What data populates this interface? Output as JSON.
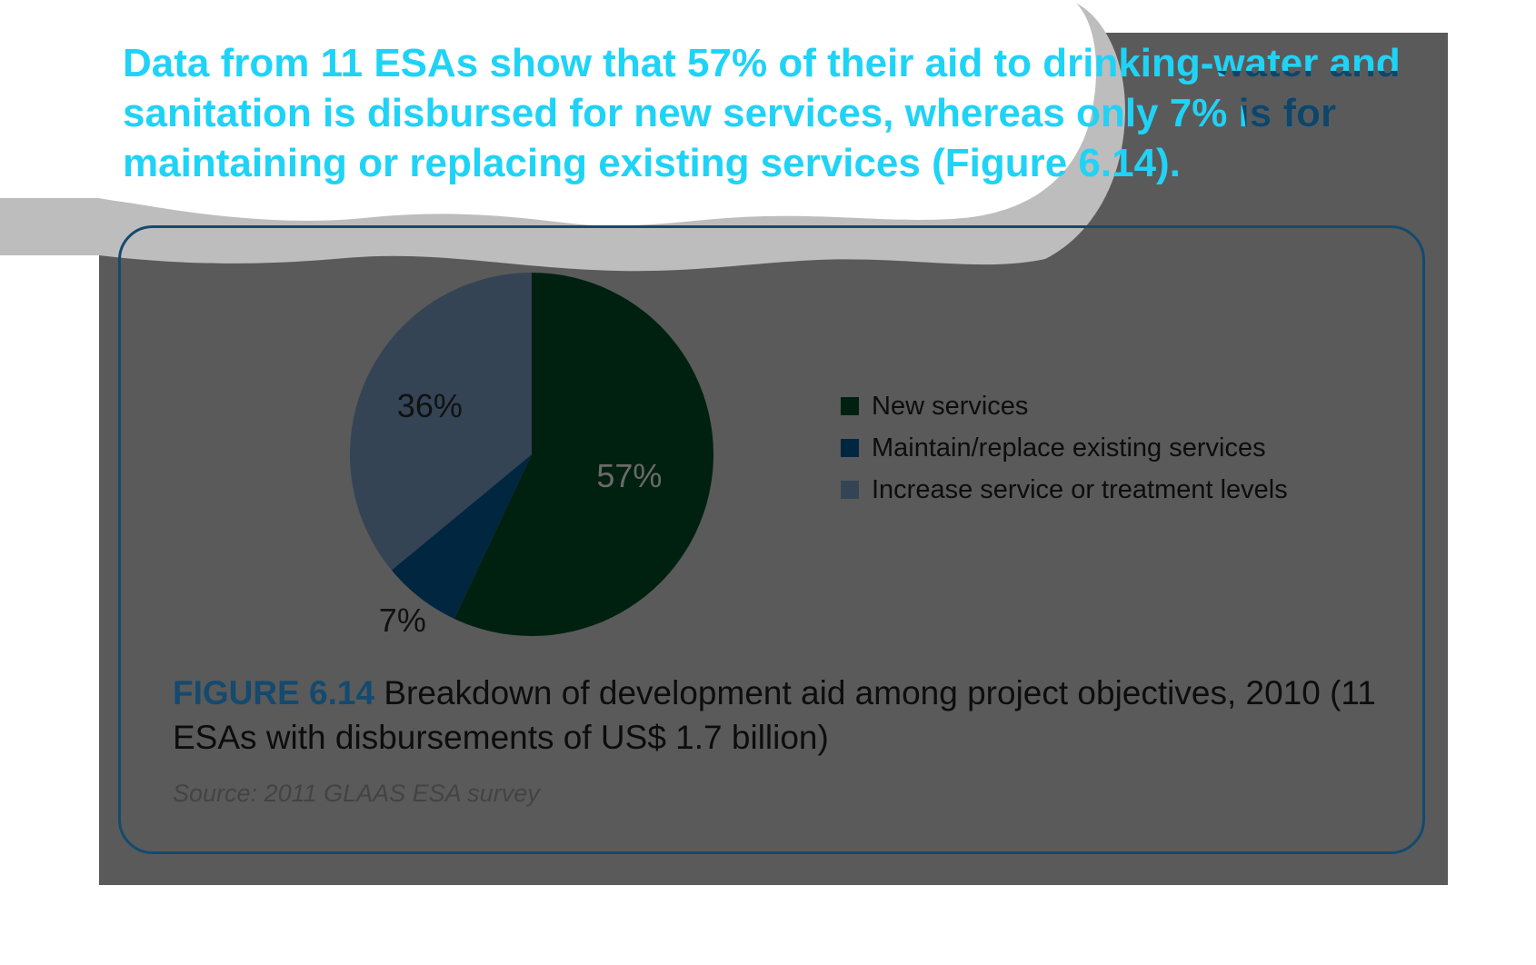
{
  "headline": {
    "text": "Data from 11 ESAs show that 57% of their aid to drinking-water and sanitation is disbursed for new services, whereas only 7% is for maintaining or replacing existing services (Figure 6.14)."
  },
  "figure": {
    "label": "FIGURE 6.14",
    "caption": "Breakdown of development aid among project objectives, 2010 (11 ESAs with disbursements of US$ 1.7 billion)",
    "source": "Source: 2011 GLAAS ESA survey"
  },
  "colors": {
    "headline": "#1fd3f6",
    "headline_under_dark": "#124467",
    "new_services": "#012110",
    "maintain_replace": "#002640",
    "increase_levels": "#344455",
    "figure_label": "#144a6e",
    "panel": "#5a5a5a"
  },
  "chart_data": {
    "type": "pie",
    "title": "",
    "slices": [
      {
        "name": "New services",
        "value": 57,
        "label": "57%",
        "color": "#012110",
        "label_color": "#6a6a6a"
      },
      {
        "name": "Maintain/replace existing services",
        "value": 7,
        "label": "7%",
        "color": "#002640",
        "label_color": "#111111"
      },
      {
        "name": "Increase service or treatment levels",
        "value": 36,
        "label": "36%",
        "color": "#344455",
        "label_color": "#111111"
      }
    ],
    "start_angle": "12 o'clock",
    "direction": "clockwise",
    "legend_position": "right"
  }
}
